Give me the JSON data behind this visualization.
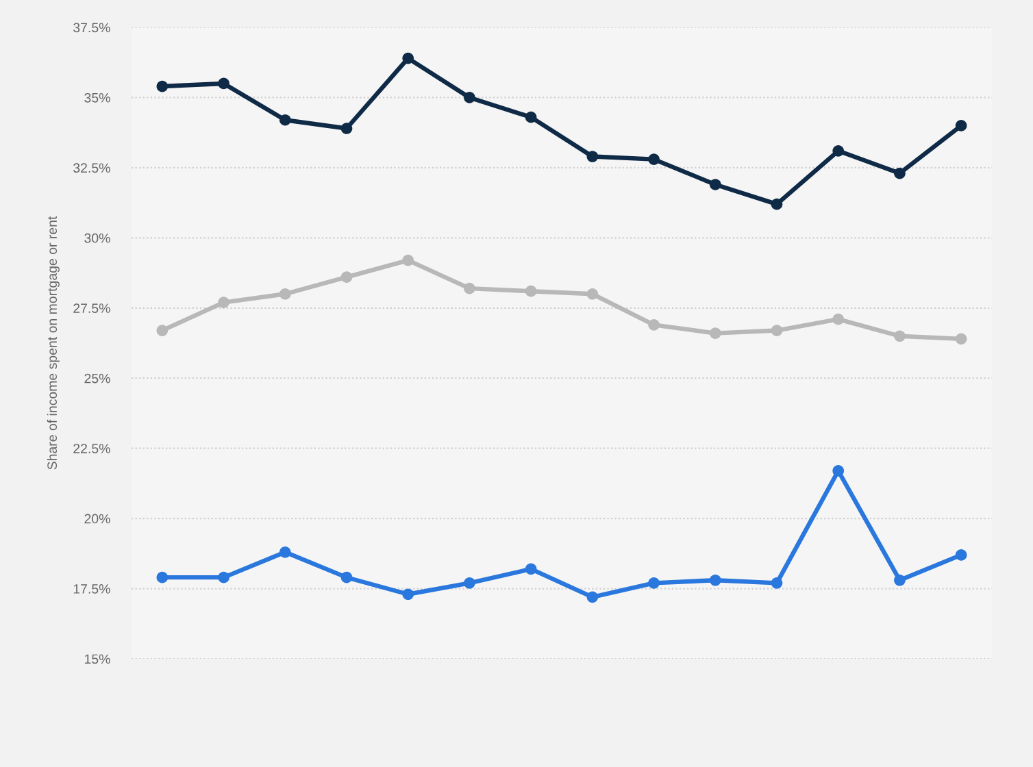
{
  "chart_data": {
    "type": "line",
    "ylabel": "Share of income spent on mortgage or rent",
    "categories": [
      null,
      null,
      null,
      null,
      null,
      null,
      null,
      null,
      null,
      null,
      null,
      null,
      null,
      null
    ],
    "series": [
      {
        "color": "#0f2a46",
        "values": [
          35.4,
          35.5,
          34.2,
          33.9,
          36.4,
          35.0,
          34.3,
          32.9,
          32.8,
          31.9,
          31.2,
          33.1,
          32.3,
          34.0
        ]
      },
      {
        "color": "#b8b8b8",
        "values": [
          26.7,
          27.7,
          28.0,
          28.6,
          29.2,
          28.2,
          28.1,
          28.0,
          26.9,
          26.6,
          26.7,
          27.1,
          26.5,
          26.4
        ]
      },
      {
        "color": "#2a77dd",
        "values": [
          17.9,
          17.9,
          18.8,
          17.9,
          17.3,
          17.7,
          18.2,
          17.2,
          17.7,
          17.8,
          17.7,
          21.7,
          17.8,
          18.7
        ]
      }
    ],
    "ylim": [
      15,
      37.5
    ],
    "yticks": [
      {
        "value": 15,
        "label": "15%"
      },
      {
        "value": 17.5,
        "label": "17.5%"
      },
      {
        "value": 20,
        "label": "20%"
      },
      {
        "value": 22.5,
        "label": "22.5%"
      },
      {
        "value": 25,
        "label": "25%"
      },
      {
        "value": 27.5,
        "label": "27.5%"
      },
      {
        "value": 30,
        "label": "30%"
      },
      {
        "value": 32.5,
        "label": "32.5%"
      },
      {
        "value": 35,
        "label": "35%"
      },
      {
        "value": 37.5,
        "label": "37.5%"
      }
    ],
    "grid": "y",
    "legend": false,
    "tick_labels": "y",
    "marker": "circle",
    "line_style": "solid"
  }
}
